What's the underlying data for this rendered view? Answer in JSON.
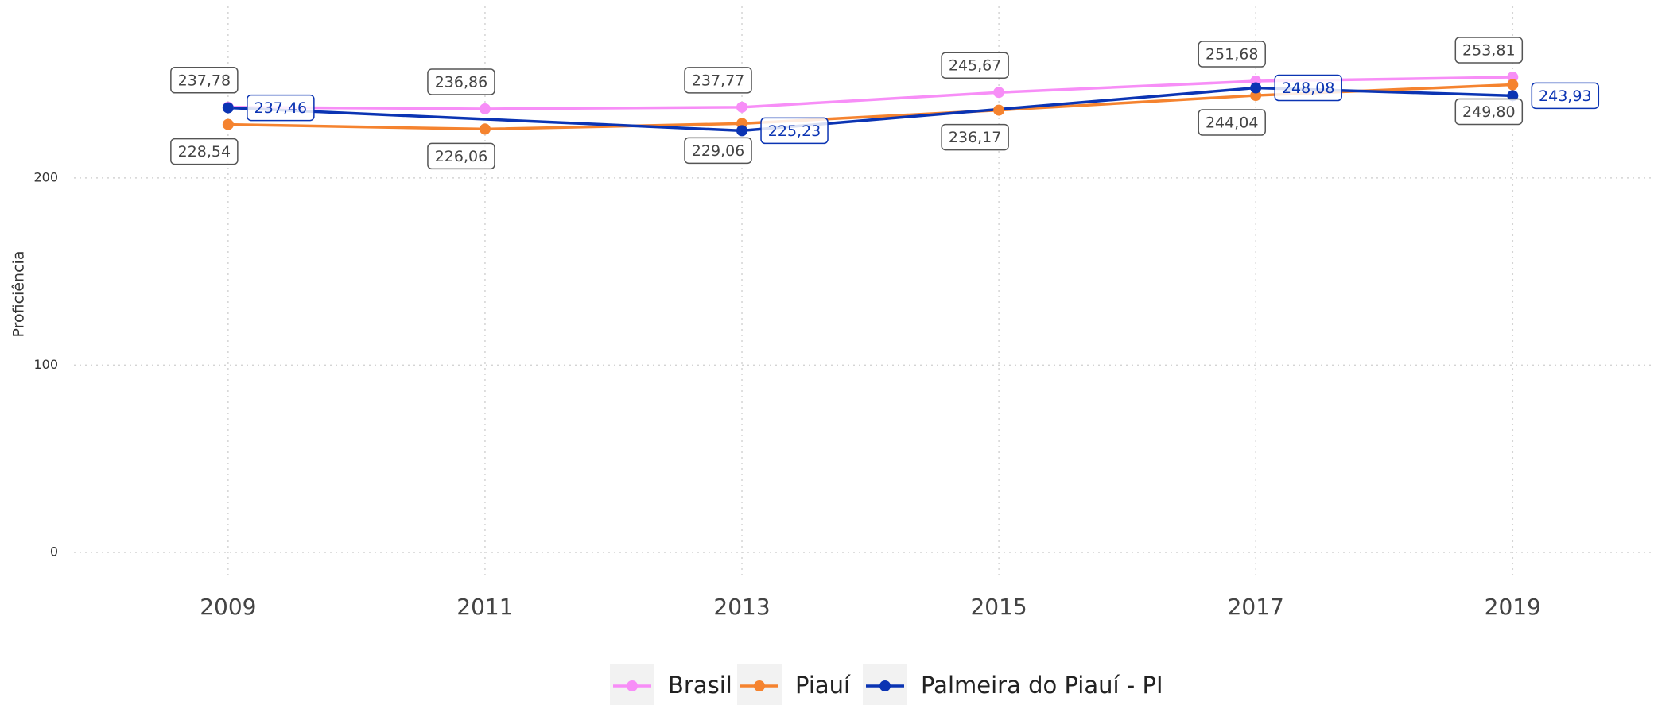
{
  "chart_data": {
    "type": "line",
    "y_label": "Proficiência",
    "xlim": [
      2007.8,
      2020.1
    ],
    "ylim": [
      -14,
      295
    ],
    "xticks": [
      2009,
      2011,
      2013,
      2015,
      2017,
      2019
    ],
    "yticks": [
      0,
      100,
      200
    ],
    "grid": true,
    "legend": "bottom",
    "series": [
      {
        "name": "Brasil",
        "color": "#f78ef7",
        "x": [
          2009,
          2011,
          2013,
          2015,
          2017,
          2019
        ],
        "values": [
          237.78,
          236.86,
          237.77,
          245.67,
          251.68,
          253.81
        ],
        "value_labels": [
          "237,78",
          "236,86",
          "237,77",
          "245,67",
          "251,68",
          "253,81"
        ]
      },
      {
        "name": "Piauí",
        "color": "#f5832f",
        "x": [
          2009,
          2011,
          2013,
          2015,
          2017,
          2019
        ],
        "values": [
          228.54,
          226.06,
          229.06,
          236.17,
          244.04,
          249.8
        ],
        "value_labels": [
          "228,54",
          "226,06",
          "229,06",
          "236,17",
          "244,04",
          "249,80"
        ]
      },
      {
        "name": "Palmeira do Piauí - PI",
        "color": "#0b34b3",
        "x": [
          2009,
          2013,
          2017,
          2019
        ],
        "values": [
          237.46,
          225.23,
          248.08,
          243.93
        ],
        "value_labels": [
          "237,46",
          "225,23",
          "248,08",
          "243,93"
        ]
      }
    ]
  }
}
